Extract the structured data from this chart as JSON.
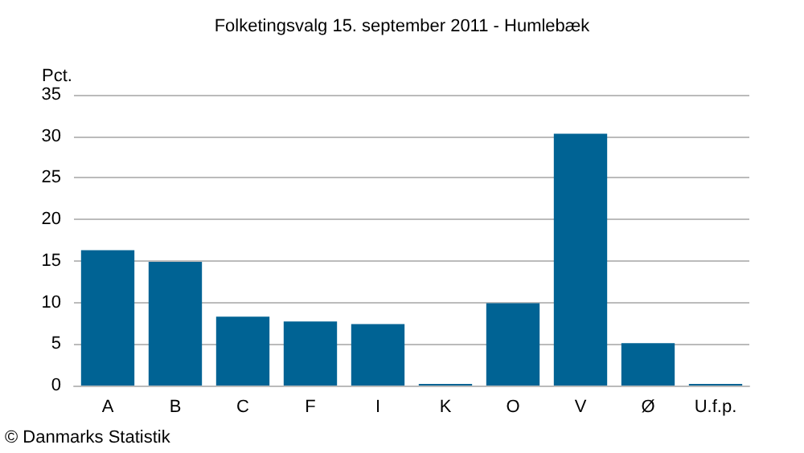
{
  "chart_data": {
    "type": "bar",
    "title": "Folketingsvalg 15. september 2011 - Humlebæk",
    "ylabel": "Pct.",
    "categories": [
      "A",
      "B",
      "C",
      "F",
      "I",
      "K",
      "O",
      "V",
      "Ø",
      "U.f.p."
    ],
    "values": [
      16.3,
      14.9,
      8.3,
      7.7,
      7.4,
      0.2,
      9.9,
      30.3,
      5.1,
      0.2
    ],
    "color": "#006394",
    "ylim": [
      0,
      35
    ],
    "yticks": [
      0,
      5,
      10,
      15,
      20,
      25,
      30,
      35
    ],
    "grid": "y",
    "annotations": [
      "© Danmarks Statistik"
    ]
  }
}
